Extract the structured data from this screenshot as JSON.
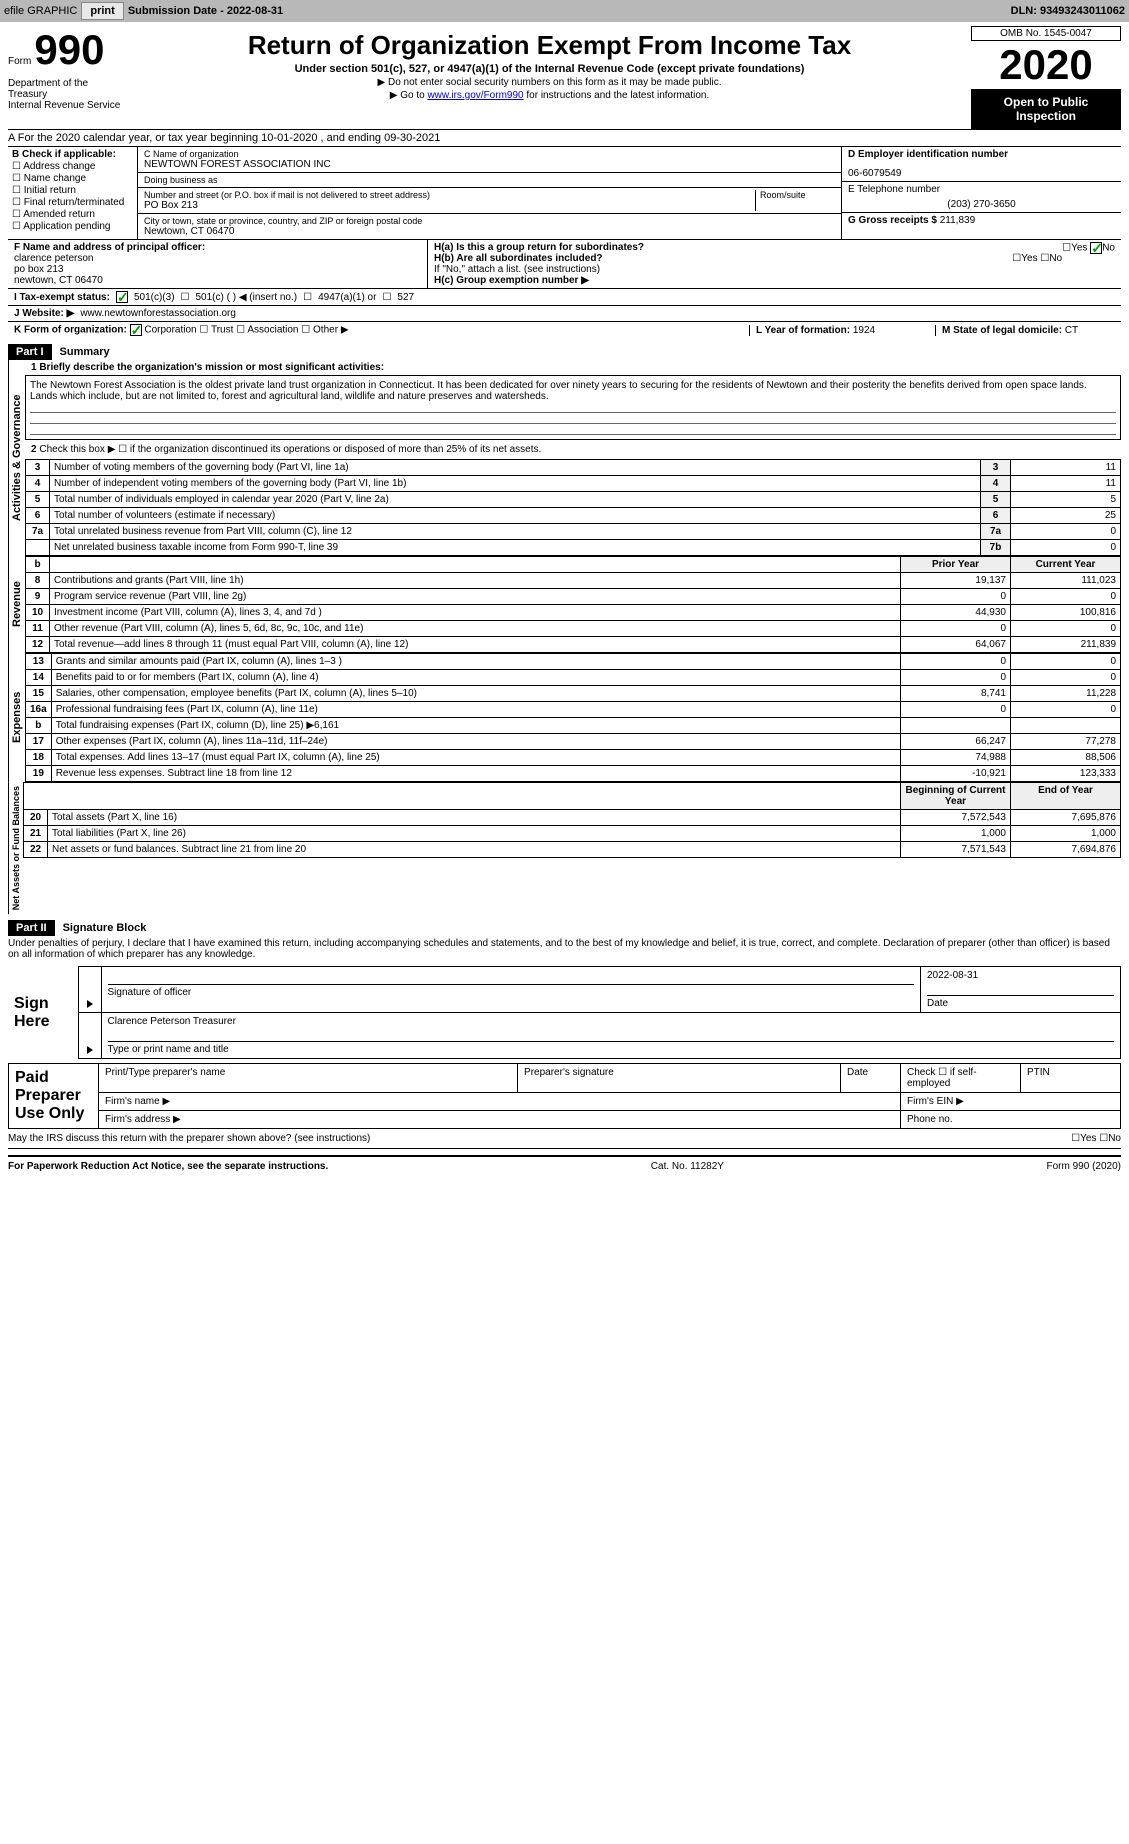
{
  "toolbar": {
    "efile": "efile GRAPHIC",
    "print": "print",
    "sub_label": "Submission Date - 2022-08-31",
    "dln": "DLN: 93493243011062"
  },
  "header": {
    "form_word": "Form",
    "form_num": "990",
    "dept": "Department of the Treasury\nInternal Revenue Service",
    "title": "Return of Organization Exempt From Income Tax",
    "subtitle": "Under section 501(c), 527, or 4947(a)(1) of the Internal Revenue Code (except private foundations)",
    "note1": "▶ Do not enter social security numbers on this form as it may be made public.",
    "note2_pre": "▶ Go to ",
    "note2_link": "www.irs.gov/Form990",
    "note2_post": " for instructions and the latest information.",
    "omb": "OMB No. 1545-0047",
    "year": "2020",
    "open": "Open to Public Inspection"
  },
  "section_a": "For the 2020 calendar year, or tax year beginning 10-01-2020    , and ending 09-30-2021",
  "col_b": {
    "title": "B Check if applicable:",
    "items": [
      "Address change",
      "Name change",
      "Initial return",
      "Final return/terminated",
      "Amended return",
      "Application pending"
    ]
  },
  "col_c": {
    "name_label": "C Name of organization",
    "name": "NEWTOWN FOREST ASSOCIATION INC",
    "dba": "Doing business as",
    "addr_label": "Number and street (or P.O. box if mail is not delivered to street address)",
    "addr": "PO Box 213",
    "room_label": "Room/suite",
    "city_label": "City or town, state or province, country, and ZIP or foreign postal code",
    "city": "Newtown, CT  06470"
  },
  "col_d": {
    "ein_label": "D Employer identification number",
    "ein": "06-6079549",
    "tel_label": "E Telephone number",
    "tel": "(203) 270-3650",
    "gross_label": "G Gross receipts $ ",
    "gross": "211,839"
  },
  "officer": {
    "label": "F  Name and address of principal officer:",
    "name": "clarence peterson",
    "addr1": "po box 213",
    "addr2": "newtown, CT  06470"
  },
  "h": {
    "a": "H(a)  Is this a group return for subordinates?",
    "b": "H(b)  Are all subordinates included?",
    "note": "If \"No,\" attach a list. (see instructions)",
    "c": "H(c)  Group exemption number ▶",
    "yes": "Yes",
    "no": "No"
  },
  "tax_exempt": {
    "label": "I   Tax-exempt status:",
    "opts": [
      "501(c)(3)",
      "501(c) (    ) ◀ (insert no.)",
      "4947(a)(1) or",
      "527"
    ]
  },
  "website": {
    "label": "J   Website: ▶",
    "val": "www.newtownforestassociation.org"
  },
  "k": {
    "label": "K Form of organization:",
    "opts": [
      "Corporation",
      "Trust",
      "Association",
      "Other ▶"
    ]
  },
  "l": {
    "label": "L Year of formation: ",
    "val": "1924"
  },
  "m": {
    "label": "M State of legal domicile: ",
    "val": "CT"
  },
  "part1": {
    "hdr": "Part I",
    "title": "Summary",
    "line1_label": "1  Briefly describe the organization's mission or most significant activities:",
    "mission": "The Newtown Forest Association is the oldest private land trust organization in Connecticut. It has been dedicated for over ninety years to securing for the residents of Newtown and their posterity the benefits derived from open space lands. Lands which include, but are not limited to, forest and agricultural land, wildlife and nature preserves and watersheds.",
    "line2": "Check this box ▶ ☐ if the organization discontinued its operations or disposed of more than 25% of its net assets.",
    "activities_label": "Activities & Governance",
    "revenue_label": "Revenue",
    "expenses_label": "Expenses",
    "netassets_label": "Net Assets or Fund Balances",
    "rows_act": [
      {
        "n": "3",
        "d": "Number of voting members of the governing body (Part VI, line 1a)",
        "b": "3",
        "v": "11"
      },
      {
        "n": "4",
        "d": "Number of independent voting members of the governing body (Part VI, line 1b)",
        "b": "4",
        "v": "11"
      },
      {
        "n": "5",
        "d": "Total number of individuals employed in calendar year 2020 (Part V, line 2a)",
        "b": "5",
        "v": "5"
      },
      {
        "n": "6",
        "d": "Total number of volunteers (estimate if necessary)",
        "b": "6",
        "v": "25"
      },
      {
        "n": "7a",
        "d": "Total unrelated business revenue from Part VIII, column (C), line 12",
        "b": "7a",
        "v": "0"
      },
      {
        "n": "",
        "d": "Net unrelated business taxable income from Form 990-T, line 39",
        "b": "7b",
        "v": "0"
      }
    ],
    "col_prior": "Prior Year",
    "col_current": "Current Year",
    "rows_rev": [
      {
        "n": "8",
        "d": "Contributions and grants (Part VIII, line 1h)",
        "p": "19,137",
        "c": "111,023"
      },
      {
        "n": "9",
        "d": "Program service revenue (Part VIII, line 2g)",
        "p": "0",
        "c": "0"
      },
      {
        "n": "10",
        "d": "Investment income (Part VIII, column (A), lines 3, 4, and 7d )",
        "p": "44,930",
        "c": "100,816"
      },
      {
        "n": "11",
        "d": "Other revenue (Part VIII, column (A), lines 5, 6d, 8c, 9c, 10c, and 11e)",
        "p": "0",
        "c": "0"
      },
      {
        "n": "12",
        "d": "Total revenue—add lines 8 through 11 (must equal Part VIII, column (A), line 12)",
        "p": "64,067",
        "c": "211,839"
      }
    ],
    "rows_exp": [
      {
        "n": "13",
        "d": "Grants and similar amounts paid (Part IX, column (A), lines 1–3 )",
        "p": "0",
        "c": "0"
      },
      {
        "n": "14",
        "d": "Benefits paid to or for members (Part IX, column (A), line 4)",
        "p": "0",
        "c": "0"
      },
      {
        "n": "15",
        "d": "Salaries, other compensation, employee benefits (Part IX, column (A), lines 5–10)",
        "p": "8,741",
        "c": "11,228"
      },
      {
        "n": "16a",
        "d": "Professional fundraising fees (Part IX, column (A), line 11e)",
        "p": "0",
        "c": "0"
      },
      {
        "n": "b",
        "d": "Total fundraising expenses (Part IX, column (D), line 25) ▶6,161",
        "p": "",
        "c": ""
      },
      {
        "n": "17",
        "d": "Other expenses (Part IX, column (A), lines 11a–11d, 11f–24e)",
        "p": "66,247",
        "c": "77,278"
      },
      {
        "n": "18",
        "d": "Total expenses. Add lines 13–17 (must equal Part IX, column (A), line 25)",
        "p": "74,988",
        "c": "88,506"
      },
      {
        "n": "19",
        "d": "Revenue less expenses. Subtract line 18 from line 12",
        "p": "-10,921",
        "c": "123,333"
      }
    ],
    "col_begin": "Beginning of Current Year",
    "col_end": "End of Year",
    "rows_net": [
      {
        "n": "20",
        "d": "Total assets (Part X, line 16)",
        "p": "7,572,543",
        "c": "7,695,876"
      },
      {
        "n": "21",
        "d": "Total liabilities (Part X, line 26)",
        "p": "1,000",
        "c": "1,000"
      },
      {
        "n": "22",
        "d": "Net assets or fund balances. Subtract line 21 from line 20",
        "p": "7,571,543",
        "c": "7,694,876"
      }
    ]
  },
  "part2": {
    "hdr": "Part II",
    "title": "Signature Block",
    "decl": "Under penalties of perjury, I declare that I have examined this return, including accompanying schedules and statements, and to the best of my knowledge and belief, it is true, correct, and complete. Declaration of preparer (other than officer) is based on all information of which preparer has any knowledge.",
    "sign_here": "Sign Here",
    "sig_officer": "Signature of officer",
    "date": "Date",
    "sig_date": "2022-08-31",
    "name_title": "Clarence Peterson  Treasurer",
    "type_name": "Type or print name and title",
    "paid": "Paid Preparer Use Only",
    "prep_name": "Print/Type preparer's name",
    "prep_sig": "Preparer's signature",
    "prep_date": "Date",
    "check_self": "Check ☐ if self-employed",
    "ptin": "PTIN",
    "firm_name": "Firm's name   ▶",
    "firm_ein": "Firm's EIN ▶",
    "firm_addr": "Firm's address ▶",
    "phone": "Phone no.",
    "may_irs": "May the IRS discuss this return with the preparer shown above? (see instructions)"
  },
  "footer": {
    "left": "For Paperwork Reduction Act Notice, see the separate instructions.",
    "mid": "Cat. No. 11282Y",
    "right": "Form 990 (2020)"
  }
}
